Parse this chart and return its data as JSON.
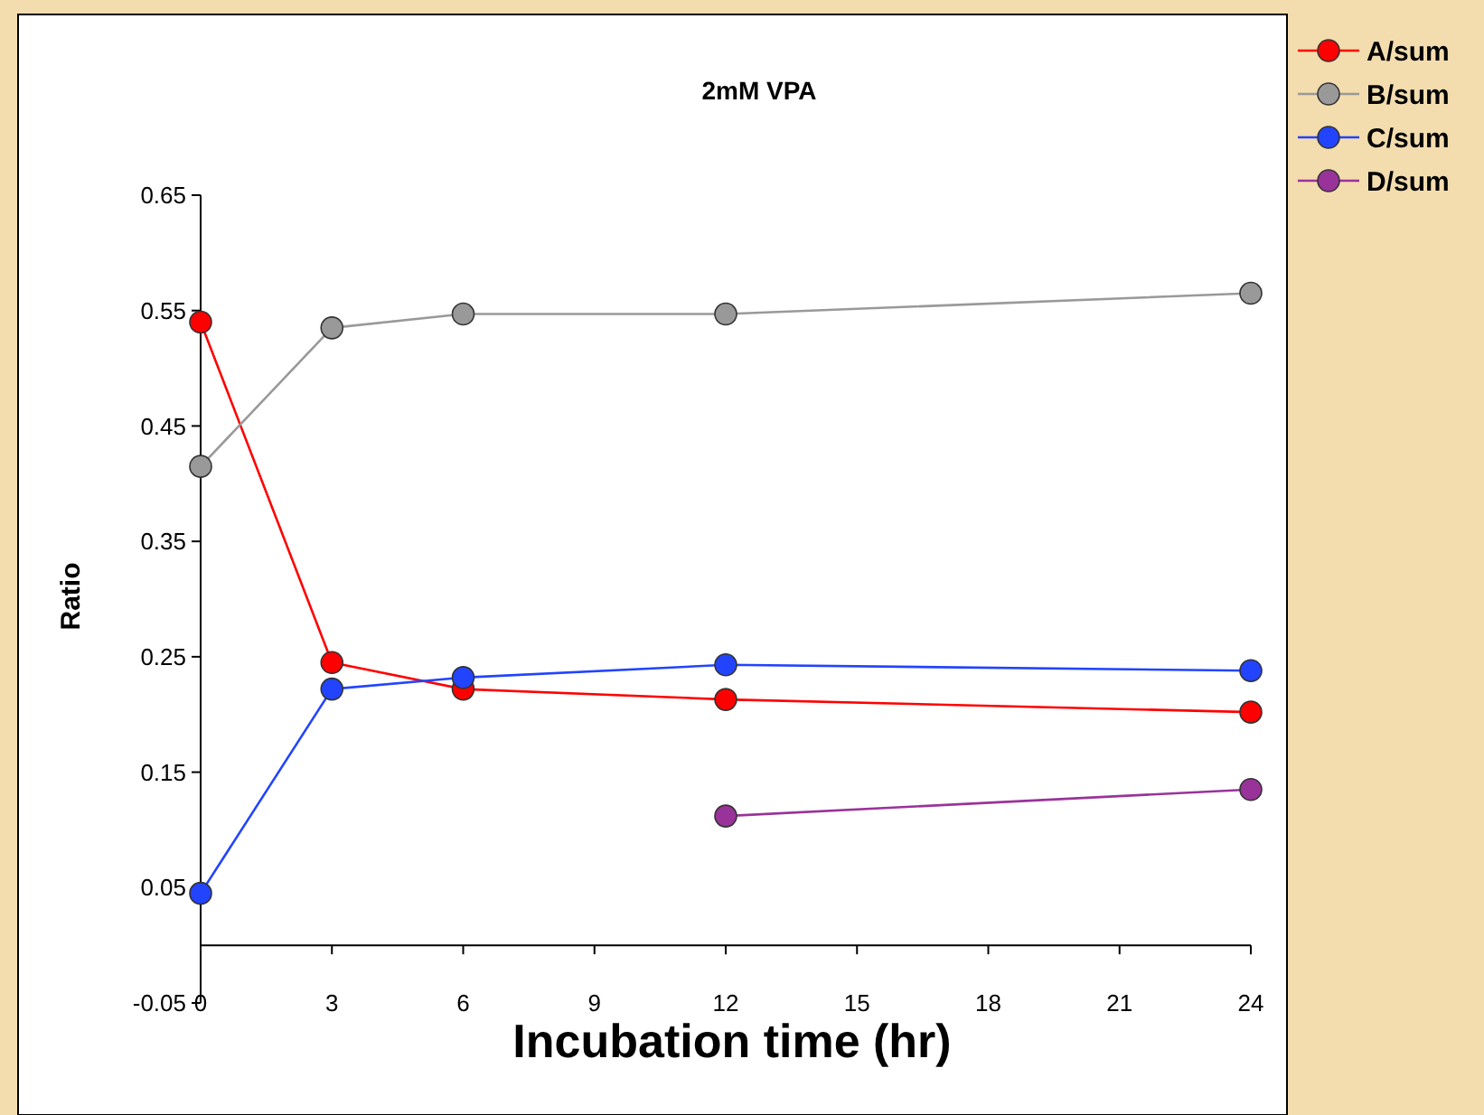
{
  "chart_data": {
    "type": "line",
    "title": "2mM VPA",
    "xlabel": "Incubation time (hr)",
    "ylabel": "Ratio",
    "x": [
      0,
      3,
      6,
      12,
      24
    ],
    "series": [
      {
        "name": "A/sum",
        "color": "#ff0000",
        "values": [
          0.54,
          0.245,
          0.222,
          0.213,
          0.202
        ]
      },
      {
        "name": "B/sum",
        "color": "#999999",
        "values": [
          0.415,
          0.535,
          0.547,
          0.547,
          0.565
        ]
      },
      {
        "name": "C/sum",
        "color": "#2244ff",
        "values": [
          0.045,
          0.222,
          0.232,
          0.243,
          0.238
        ]
      },
      {
        "name": "D/sum",
        "color": "#993399",
        "values": [
          null,
          null,
          null,
          0.112,
          0.135
        ]
      }
    ],
    "xlim": [
      0,
      24
    ],
    "xticks": [
      0,
      3,
      6,
      9,
      12,
      15,
      18,
      21,
      24
    ],
    "ylim": [
      -0.05,
      0.65
    ],
    "yticks": [
      -0.05,
      0.05,
      0.15,
      0.25,
      0.35,
      0.45,
      0.55,
      0.65
    ],
    "grid": false,
    "legend": "top right",
    "marker": "circle",
    "line_style": "solid"
  }
}
